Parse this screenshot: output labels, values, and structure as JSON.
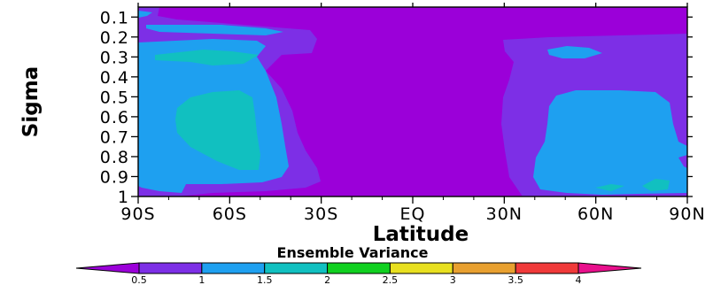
{
  "chart_data": {
    "type": "heatmap",
    "title": "",
    "xlabel": "Latitude",
    "ylabel": "Sigma",
    "x_ticks": [
      "90S",
      "60S",
      "30S",
      "EQ",
      "30N",
      "60N",
      "90N"
    ],
    "y_ticks": [
      "0.1",
      "0.2",
      "0.3",
      "0.4",
      "0.5",
      "0.6",
      "0.7",
      "0.8",
      "0.9",
      "1"
    ],
    "xlim": [
      -90,
      90
    ],
    "ylim": [
      1,
      0.05
    ],
    "grid": false,
    "colorbar": {
      "title": "Ensemble Variance",
      "levels": [
        "0.5",
        "1",
        "1.5",
        "2",
        "2.5",
        "3",
        "3.5",
        "4"
      ],
      "colors": [
        "#9b00d9",
        "#7d2fe6",
        "#1ea0f0",
        "#11c0c0",
        "#10d020",
        "#e8e020",
        "#e8a030",
        "#f03a3a",
        "#e8108c"
      ]
    },
    "regions": [
      {
        "level_range": "1-1.5",
        "color": "#7d2fe6",
        "lat_range": [
          -90,
          -30
        ],
        "sigma_range": [
          0.1,
          1.0
        ]
      },
      {
        "level_range": "1.5-2",
        "color": "#1ea0f0",
        "lat_range": [
          -88,
          -35
        ],
        "sigma_range": [
          0.17,
          0.98
        ]
      },
      {
        "level_range": "2-2.5",
        "color": "#11c0c0",
        "lat_range": [
          -80,
          -47
        ],
        "sigma_range": [
          0.22,
          0.86
        ]
      },
      {
        "level_range": "1-1.5",
        "color": "#7d2fe6",
        "lat_range": [
          35,
          90
        ],
        "sigma_range": [
          0.15,
          1.0
        ]
      },
      {
        "level_range": "1.5-2",
        "color": "#1ea0f0",
        "lat_range": [
          40,
          88
        ],
        "sigma_range": [
          0.2,
          0.99
        ]
      },
      {
        "level_range": "2-2.5",
        "color": "#11c0c0",
        "lat_range": [
          70,
          87
        ],
        "sigma_range": [
          0.94,
          0.98
        ]
      }
    ]
  }
}
